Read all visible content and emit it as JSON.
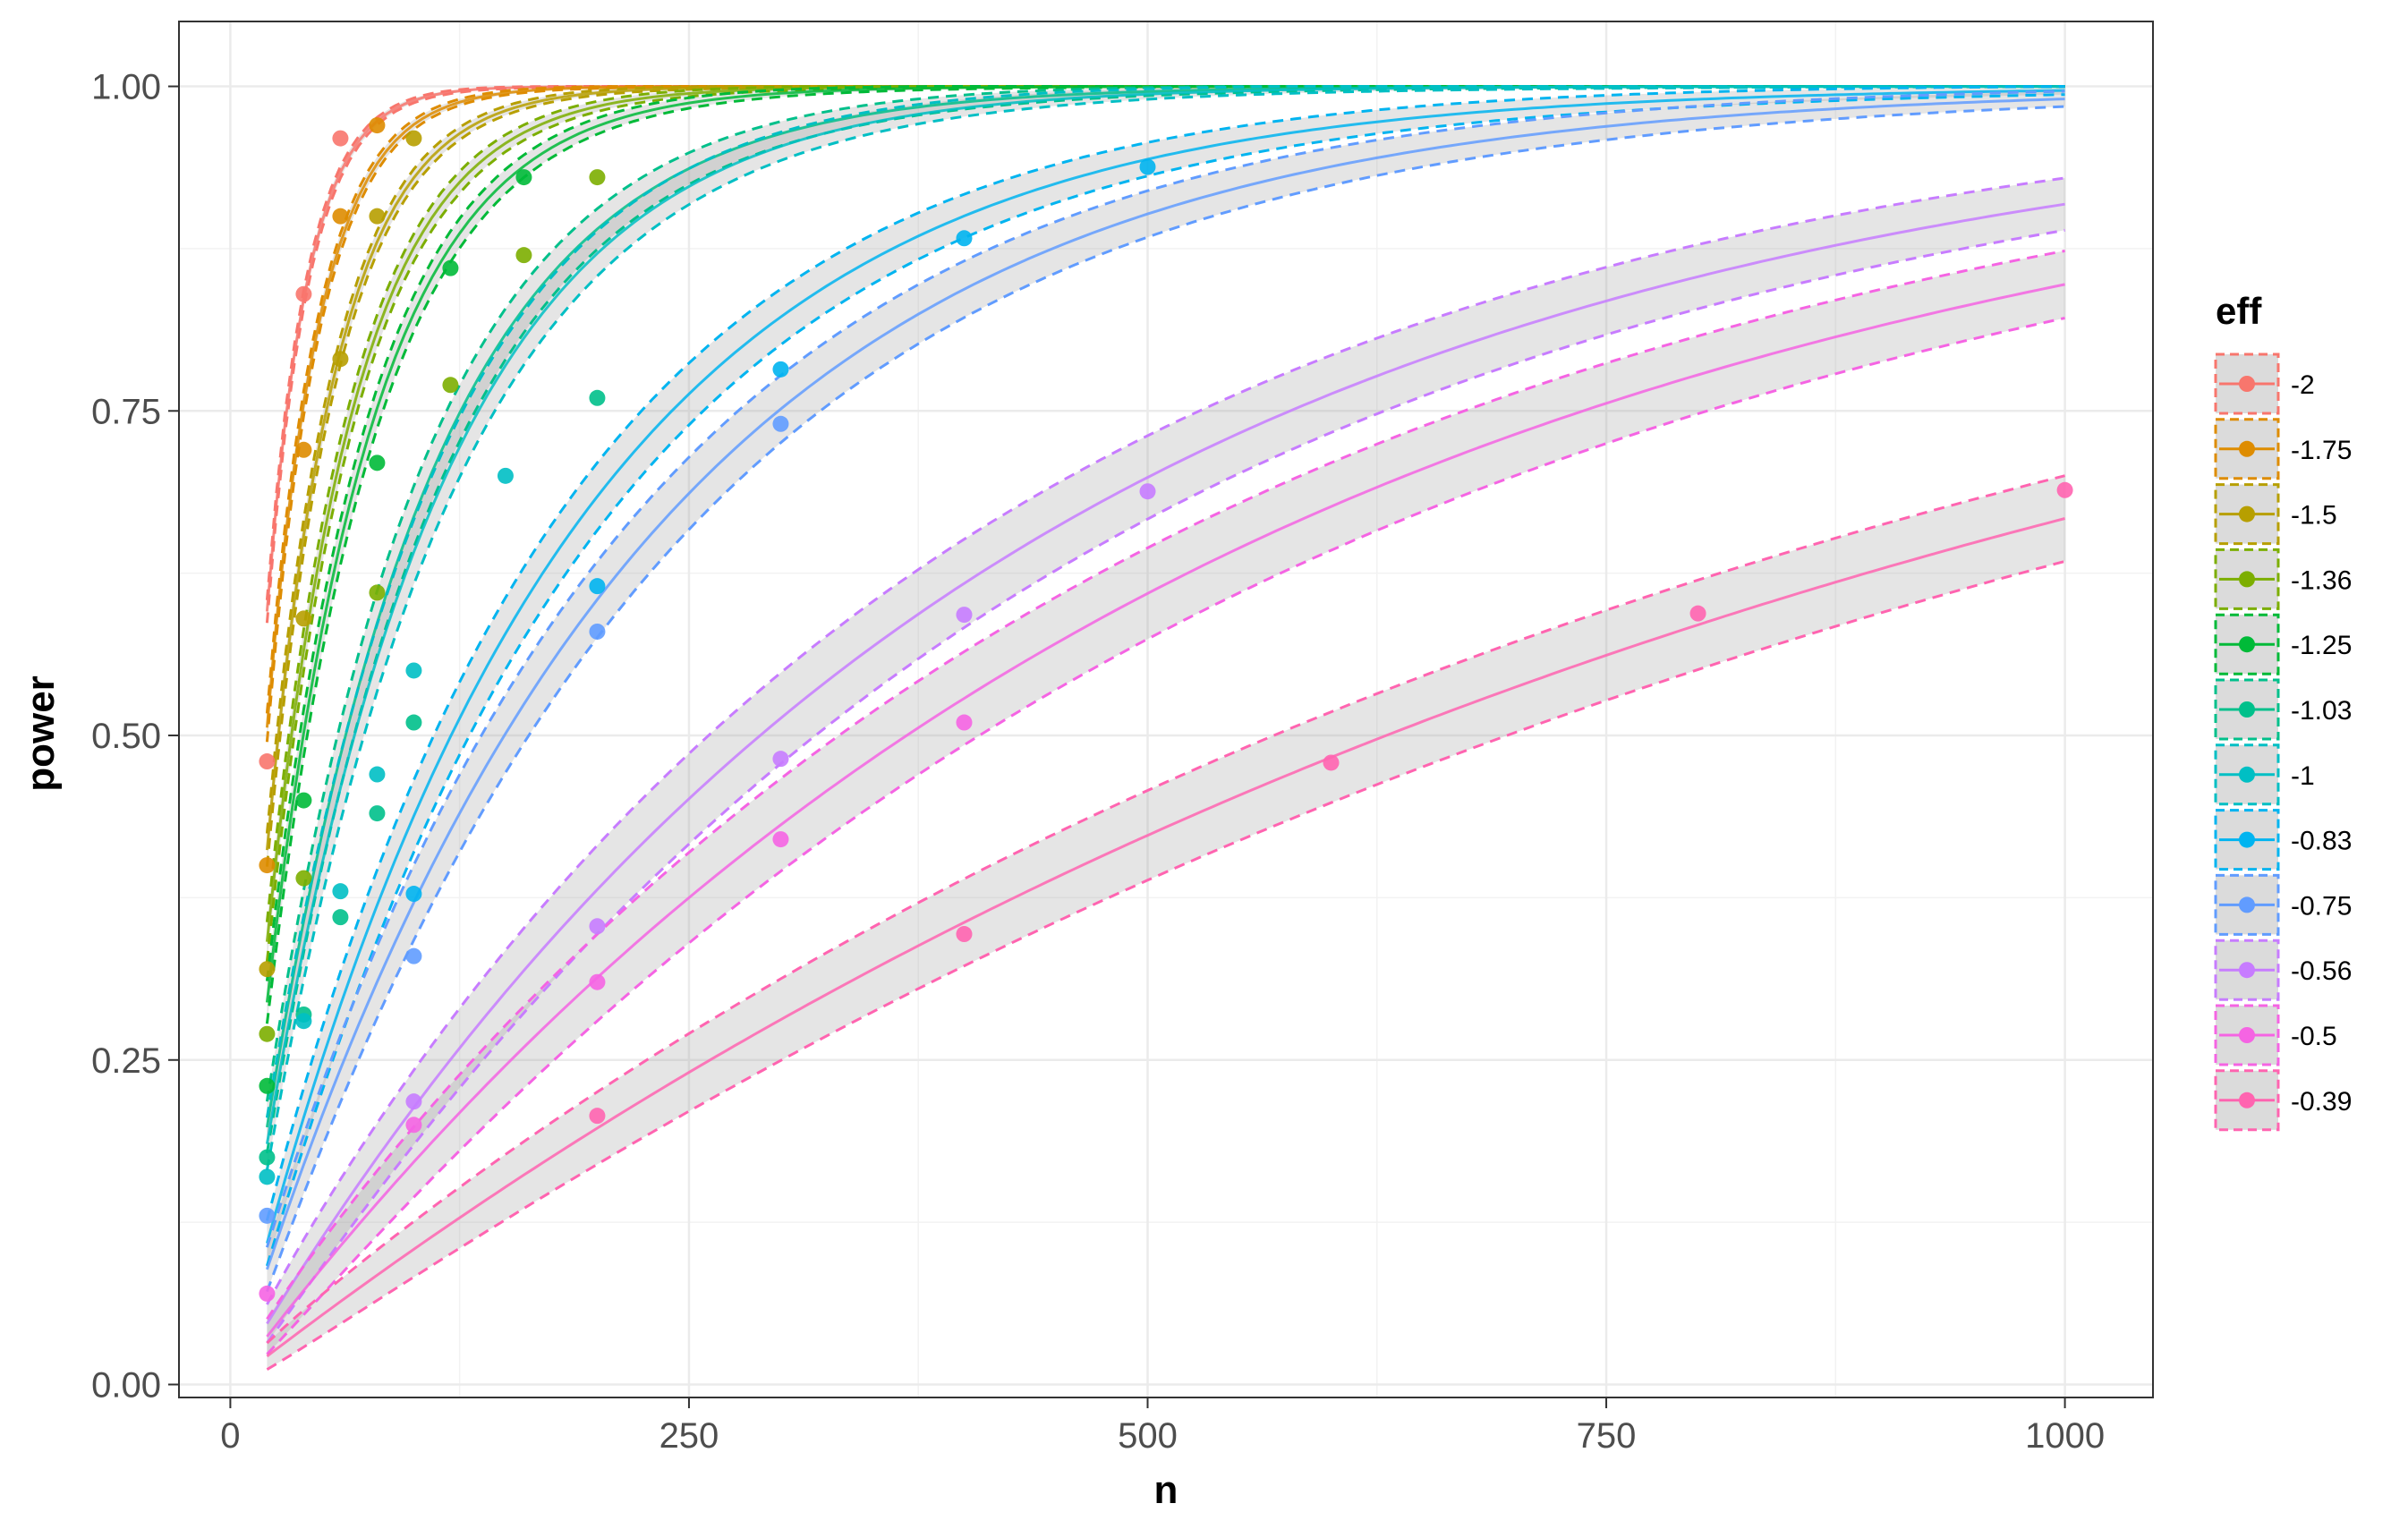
{
  "chart_data": {
    "type": "line",
    "xlabel": "n",
    "ylabel": "power",
    "xlim": [
      -28,
      1048
    ],
    "ylim": [
      -0.01,
      1.05
    ],
    "x_ticks": [
      0,
      250,
      500,
      750,
      1000
    ],
    "x_tick_labels": [
      "0",
      "250",
      "500",
      "750",
      "1000"
    ],
    "y_ticks": [
      0.0,
      0.25,
      0.5,
      0.75,
      1.0
    ],
    "y_tick_labels": [
      "0.00",
      "0.25",
      "0.50",
      "0.75",
      "1.00"
    ],
    "grid": true,
    "legend": {
      "title": "eff",
      "position": "right"
    },
    "series": [
      {
        "name": "-2",
        "color": "#F8766D",
        "k": 0.04525,
        "ci": 0.009,
        "points": [
          [
            20,
            0.48
          ],
          [
            40,
            0.84
          ],
          [
            60,
            0.96
          ]
        ]
      },
      {
        "name": "-1.75",
        "color": "#DE8C00",
        "k": 0.03526,
        "ci": 0.011,
        "points": [
          [
            20,
            0.4
          ],
          [
            40,
            0.72
          ],
          [
            60,
            0.9
          ],
          [
            80,
            0.97
          ]
        ]
      },
      {
        "name": "-1.5",
        "color": "#B79F00",
        "k": 0.02653,
        "ci": 0.013,
        "points": [
          [
            20,
            0.32
          ],
          [
            40,
            0.59
          ],
          [
            60,
            0.79
          ],
          [
            80,
            0.9
          ],
          [
            100,
            0.96
          ]
        ]
      },
      {
        "name": "-1.36",
        "color": "#7CAE00",
        "k": 0.02085,
        "ci": 0.016,
        "points": [
          [
            20,
            0.27
          ],
          [
            40,
            0.39
          ],
          [
            80,
            0.61
          ],
          [
            120,
            0.77
          ],
          [
            160,
            0.87
          ],
          [
            200,
            0.93
          ]
        ]
      },
      {
        "name": "-1.25",
        "color": "#00BA38",
        "k": 0.01743,
        "ci": 0.018,
        "points": [
          [
            20,
            0.23
          ],
          [
            40,
            0.45
          ],
          [
            80,
            0.71
          ],
          [
            120,
            0.86
          ],
          [
            160,
            0.93
          ]
        ]
      },
      {
        "name": "-1.03",
        "color": "#00C08B",
        "k": 0.01104,
        "ci": 0.025,
        "points": [
          [
            20,
            0.175
          ],
          [
            40,
            0.285
          ],
          [
            60,
            0.36
          ],
          [
            80,
            0.44
          ],
          [
            100,
            0.51
          ],
          [
            200,
            0.76
          ]
        ]
      },
      {
        "name": "-1",
        "color": "#00BFC4",
        "k": 0.01025,
        "ci": 0.026,
        "points": [
          [
            20,
            0.16
          ],
          [
            40,
            0.28
          ],
          [
            60,
            0.38
          ],
          [
            80,
            0.47
          ],
          [
            100,
            0.55
          ],
          [
            150,
            0.7
          ]
        ]
      },
      {
        "name": "-0.83",
        "color": "#00B4F0",
        "k": 0.00576,
        "ci": 0.028,
        "points": [
          [
            100,
            0.378
          ],
          [
            200,
            0.615
          ],
          [
            300,
            0.782
          ],
          [
            400,
            0.883
          ],
          [
            500,
            0.938
          ]
        ]
      },
      {
        "name": "-0.75",
        "color": "#619CFF",
        "k": 0.00464,
        "ci": 0.03,
        "points": [
          [
            20,
            0.13
          ],
          [
            100,
            0.33
          ],
          [
            200,
            0.58
          ],
          [
            300,
            0.74
          ]
        ]
      },
      {
        "name": "-0.56",
        "color": "#C77CFF",
        "k": 0.0024,
        "ci": 0.035,
        "points": [
          [
            100,
            0.218
          ],
          [
            200,
            0.353
          ],
          [
            300,
            0.482
          ],
          [
            400,
            0.593
          ],
          [
            500,
            0.688
          ]
        ]
      },
      {
        "name": "-0.5",
        "color": "#F564E3",
        "k": 0.00188,
        "ci": 0.036,
        "points": [
          [
            20,
            0.07
          ],
          [
            100,
            0.2
          ],
          [
            200,
            0.31
          ],
          [
            300,
            0.42
          ],
          [
            400,
            0.51
          ]
        ]
      },
      {
        "name": "-0.39",
        "color": "#FF64B0",
        "k": 0.0011,
        "ci": 0.035,
        "points": [
          [
            200,
            0.207
          ],
          [
            400,
            0.347
          ],
          [
            600,
            0.479
          ],
          [
            800,
            0.594
          ],
          [
            1000,
            0.689
          ]
        ]
      }
    ]
  }
}
